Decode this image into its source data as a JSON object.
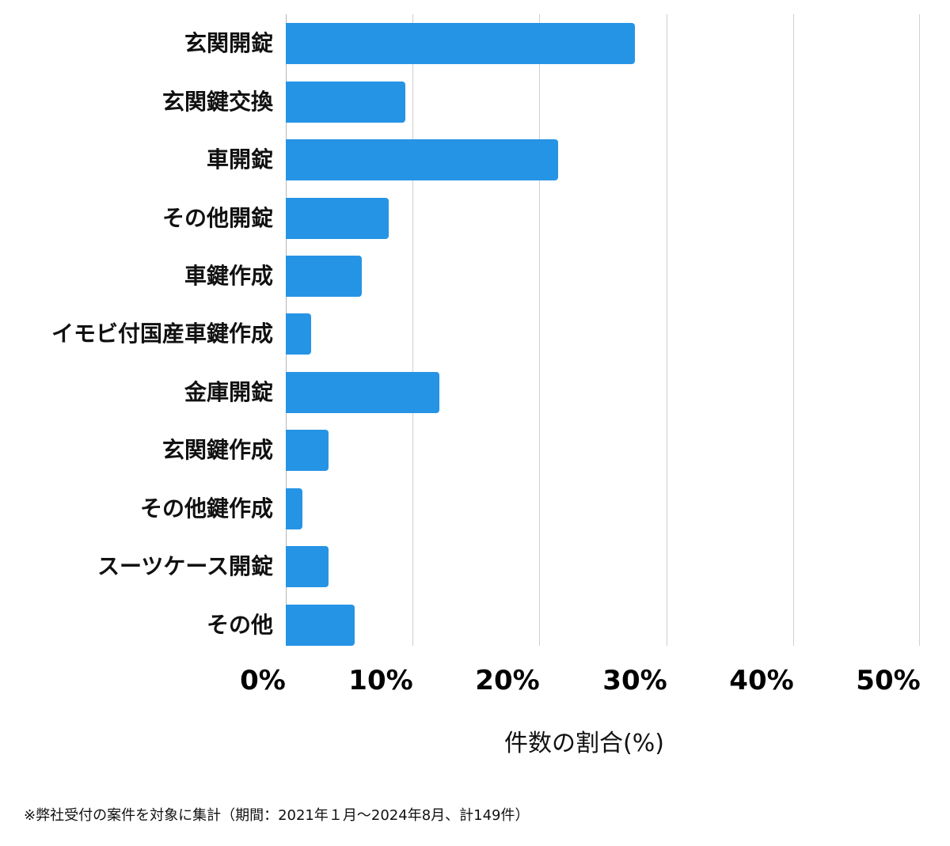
{
  "chart_data": {
    "type": "bar",
    "orientation": "horizontal",
    "title": "",
    "xlabel": "件数の割合(%)",
    "ylabel": "",
    "xlim": [
      0,
      50
    ],
    "x_ticks": [
      "0%",
      "10%",
      "20%",
      "30%",
      "40%",
      "50%"
    ],
    "grid": true,
    "legend": null,
    "categories": [
      "玄関開錠",
      "玄関鍵交換",
      "車開錠",
      "その他開錠",
      "車鍵作成",
      "イモビ付国産車鍵作成",
      "金庫開錠",
      "玄関鍵作成",
      "その他鍵作成",
      "スーツケース開錠",
      "その他"
    ],
    "values": [
      27.5,
      9.4,
      21.5,
      8.1,
      6.0,
      2.0,
      12.1,
      3.4,
      1.3,
      3.4,
      5.4
    ],
    "bar_color": "#2694e5",
    "footnote": "※弊社受付の案件を対象に集計（期間：2021年１月〜2024年8月、計149件）"
  },
  "labels": {
    "cat0": "玄関開錠",
    "cat1": "玄関鍵交換",
    "cat2": "車開錠",
    "cat3": "その他開錠",
    "cat4": "車鍵作成",
    "cat5": "イモビ付国産車鍵作成",
    "cat6": "金庫開錠",
    "cat7": "玄関鍵作成",
    "cat8": "その他鍵作成",
    "cat9": "スーツケース開錠",
    "cat10": "その他",
    "t0": "0%",
    "t1": "10%",
    "t2": "20%",
    "t3": "30%",
    "t4": "40%",
    "t5": "50%",
    "xlabel": "件数の割合(%)",
    "footnote": "※弊社受付の案件を対象に集計（期間：2021年１月〜2024年8月、計149件）"
  }
}
